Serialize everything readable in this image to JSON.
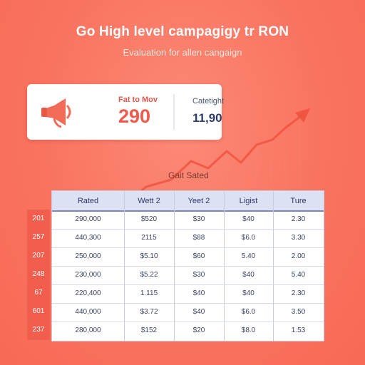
{
  "header": {
    "title": "Go High level campagigy tr RON",
    "subtitle": "Evaluation for allen cangaign"
  },
  "kpi": {
    "left_label": "Fat to Mov",
    "left_value": "290",
    "right_label": "Catetight",
    "right_value": "11,90"
  },
  "table": {
    "caption": "Gait Sated",
    "headers": [
      "Rated",
      "Wett 2",
      "Yeet 2",
      "Ligist",
      "Ture"
    ],
    "row_labels": [
      "201",
      "257",
      "207",
      "248",
      "67",
      "601",
      "237"
    ],
    "rows": [
      [
        "290,000",
        "$520",
        "$30",
        "$40",
        "2.30"
      ],
      [
        "440,300",
        "2115",
        "$88",
        "$6.0",
        "3.30"
      ],
      [
        "250,000",
        "$5.10",
        "$60",
        "5.40",
        "2.00"
      ],
      [
        "230,000",
        "$5.22",
        "$30",
        "$40",
        "5.40"
      ],
      [
        "220,400",
        "1.115",
        "$40",
        "$40",
        "2.30"
      ],
      [
        "440,000",
        "$3.72",
        "$40",
        "$6.0",
        "3.50"
      ],
      [
        "280,000",
        "$152",
        "$20",
        "$8.0",
        "1.53"
      ]
    ]
  },
  "icons": {
    "kpi": "megaphone-icon",
    "trend": "trend-arrow-icon"
  },
  "colors": {
    "background": "#f9735f",
    "accent": "#ef5a4a",
    "header_fill": "#dde1f4",
    "header_rule": "#7b86c2"
  }
}
